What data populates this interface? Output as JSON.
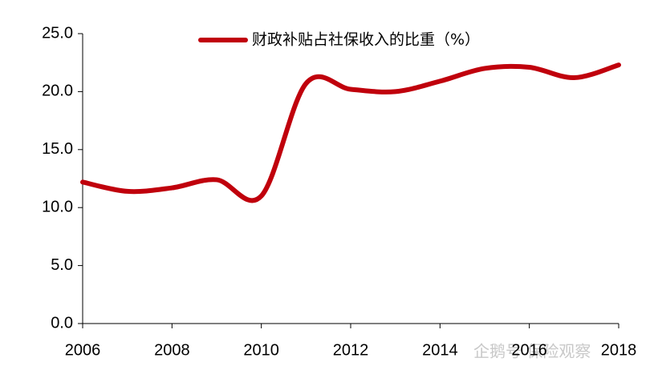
{
  "chart_data": {
    "type": "line",
    "x": [
      2006,
      2007,
      2008,
      2009,
      2010,
      2011,
      2012,
      2013,
      2014,
      2015,
      2016,
      2017,
      2018
    ],
    "series": [
      {
        "name": "财政补贴占社保收入的比重（%）",
        "color": "#c0000c",
        "values": [
          12.2,
          11.4,
          11.7,
          12.4,
          11.0,
          20.7,
          20.2,
          20.0,
          20.9,
          22.0,
          22.1,
          21.2,
          22.3
        ]
      }
    ],
    "xlim": [
      2006,
      2018
    ],
    "xticks": [
      2006,
      2008,
      2010,
      2012,
      2014,
      2016,
      2018
    ],
    "ylim": [
      0,
      25
    ],
    "yticks": [
      {
        "value": 0,
        "label": "0.0"
      },
      {
        "value": 5,
        "label": "5.0"
      },
      {
        "value": 10,
        "label": "10.0"
      },
      {
        "value": 15,
        "label": "15.0"
      },
      {
        "value": 20,
        "label": "20.0"
      },
      {
        "value": 25,
        "label": "25.0"
      }
    ],
    "grid": false,
    "legend": "top",
    "watermark": "企鹅号 保险观察"
  }
}
